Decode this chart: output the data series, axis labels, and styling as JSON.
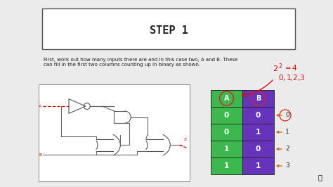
{
  "bg_color": "#ebebeb",
  "title_box_text": "STEP 1",
  "body_text": "First, work out how many inputs there are and in this case two, A and B. These\ncan fill in the first two columns counting up in binary as shown.",
  "table": {
    "headers": [
      "A",
      "B"
    ],
    "rows": [
      [
        "0",
        "0"
      ],
      [
        "0",
        "1"
      ],
      [
        "1",
        "0"
      ],
      [
        "1",
        "1"
      ]
    ],
    "col_A_color": "#3db84e",
    "col_B_color": "#6633bb",
    "row_labels": [
      "0",
      "1",
      "2",
      "3"
    ]
  },
  "handwriting_color": "#cc1111",
  "arrow_color": "#cc6600",
  "gate_color": "#555555",
  "wire_color": "#666666"
}
